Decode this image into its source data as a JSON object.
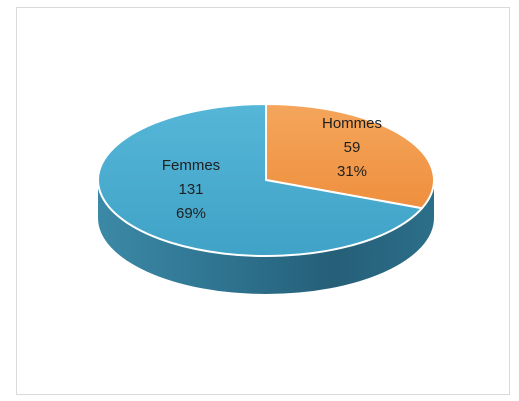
{
  "chart_data": {
    "type": "pie",
    "style": "3d",
    "title": "",
    "slices": [
      {
        "label": "Hommes",
        "value": 59,
        "percent": "31%",
        "color": "#f29a4b"
      },
      {
        "label": "Femmes",
        "value": 131,
        "percent": "69%",
        "color": "#4aaed0"
      }
    ],
    "side_colors": [
      "#2a6985",
      "#3d8aa8"
    ],
    "legend": "none",
    "data_labels": "inside"
  }
}
